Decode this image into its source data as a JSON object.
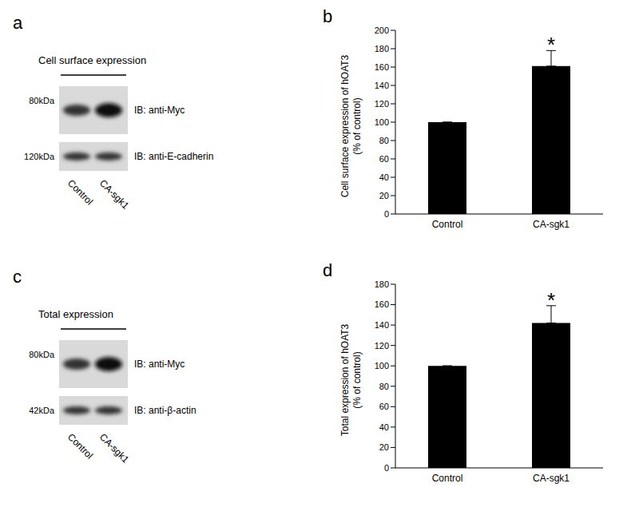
{
  "blot_panels": [
    {
      "panel": "a",
      "title": "Cell surface expression",
      "lanes": [
        "Control",
        "CA-sgk1"
      ],
      "rows": [
        {
          "mw": "80kDa",
          "ib": "IB: anti-Myc"
        },
        {
          "mw": "120kDa",
          "ib": "IB: anti-E-cadherin"
        }
      ]
    },
    {
      "panel": "c",
      "title": "Total expression",
      "lanes": [
        "Control",
        "CA-sgk1"
      ],
      "rows": [
        {
          "mw": "80kDa",
          "ib": "IB: anti-Myc"
        },
        {
          "mw": "42kDa",
          "ib": "IB: anti-β-actin"
        }
      ]
    }
  ],
  "chart_data": [
    {
      "panel": "b",
      "type": "bar",
      "ylabel": [
        "Cell surface expression of hOAT3",
        "(% of control)"
      ],
      "categories": [
        "Control",
        "CA-sgk1"
      ],
      "values": [
        100,
        161
      ],
      "error": [
        0,
        17
      ],
      "color": "#000000",
      "ylim": [
        0,
        200
      ],
      "yticks": [
        0,
        20,
        40,
        60,
        80,
        100,
        120,
        140,
        160,
        180,
        200
      ],
      "grid": false,
      "annotations": [
        {
          "text": "*",
          "category": "CA-sgk1"
        }
      ]
    },
    {
      "panel": "d",
      "type": "bar",
      "ylabel": [
        "Total expression of hOAT3",
        "(% of control)"
      ],
      "categories": [
        "Control",
        "CA-sgk1"
      ],
      "values": [
        100,
        142
      ],
      "error": [
        0,
        17
      ],
      "color": "#000000",
      "ylim": [
        0,
        180
      ],
      "yticks": [
        0,
        20,
        40,
        60,
        80,
        100,
        120,
        140,
        160,
        180
      ],
      "grid": false,
      "annotations": [
        {
          "text": "*",
          "category": "CA-sgk1"
        }
      ]
    }
  ]
}
